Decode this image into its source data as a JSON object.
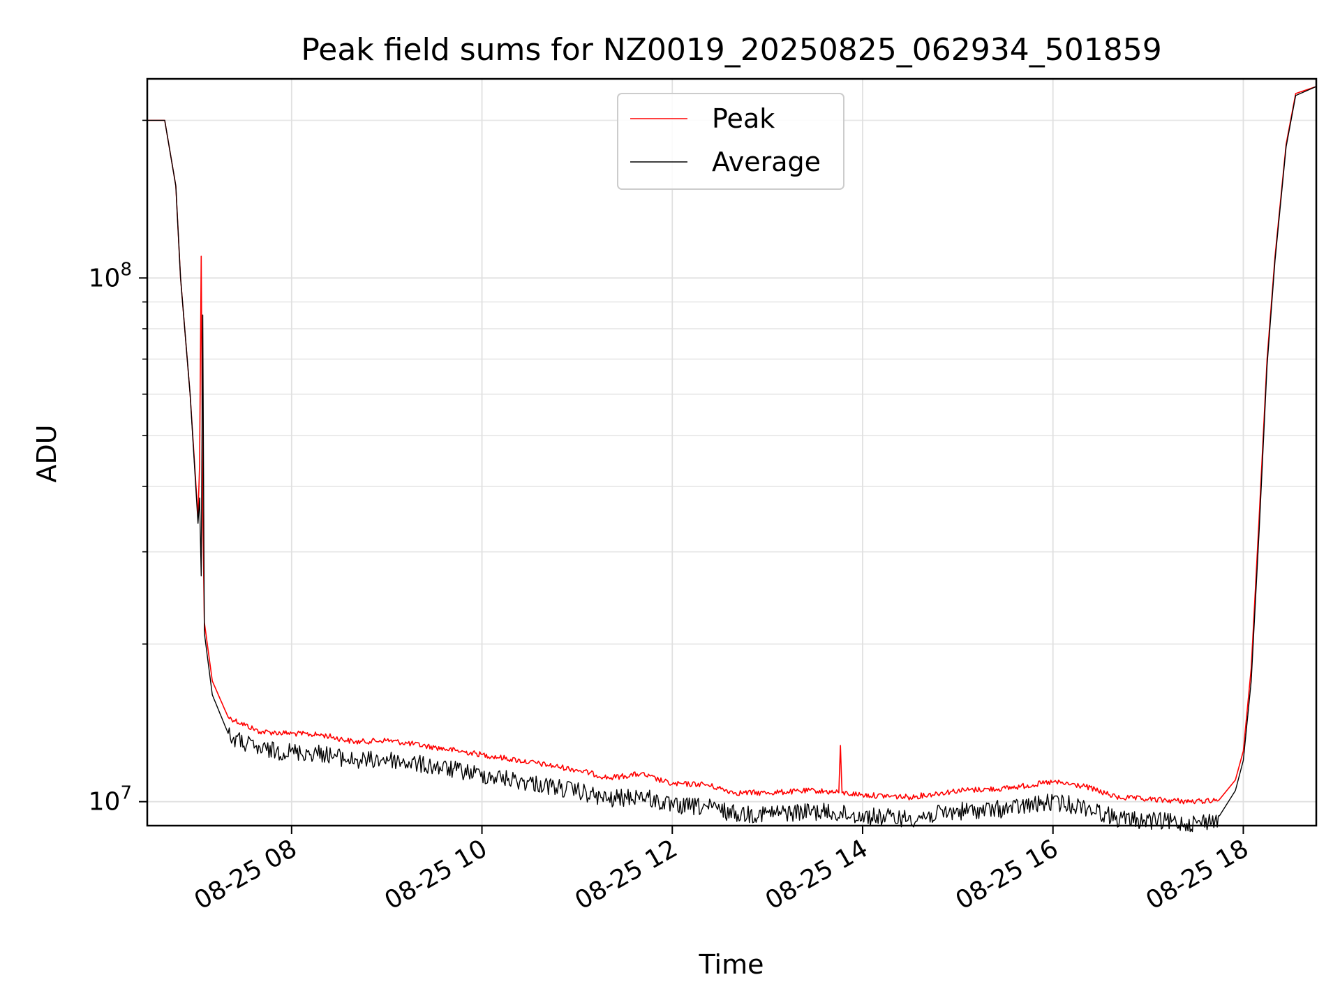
{
  "chart_data": {
    "type": "line",
    "title": "Peak field sums for NZ0019_20250825_062934_501859",
    "xlabel": "Time",
    "ylabel": "ADU",
    "y_scale": "log",
    "ylim": [
      9000000,
      240000000
    ],
    "xlim": [
      "2025-08-25 06:29",
      "2025-08-25 18:46"
    ],
    "grid": true,
    "legend_position": "top-center",
    "y_ticks": [
      {
        "value": 10000000,
        "label_base": "10",
        "label_exp": "7"
      },
      {
        "value": 100000000,
        "label_base": "10",
        "label_exp": "8"
      }
    ],
    "x_ticks": [
      {
        "value": "2025-08-25 08:00",
        "label": "08-25 08"
      },
      {
        "value": "2025-08-25 10:00",
        "label": "08-25 10"
      },
      {
        "value": "2025-08-25 12:00",
        "label": "08-25 12"
      },
      {
        "value": "2025-08-25 14:00",
        "label": "08-25 14"
      },
      {
        "value": "2025-08-25 16:00",
        "label": "08-25 16"
      },
      {
        "value": "2025-08-25 18:00",
        "label": "08-25 18"
      }
    ],
    "series": [
      {
        "name": "Peak",
        "color": "#ff0000",
        "points": [
          [
            "2025-08-25 06:29",
            200000000
          ],
          [
            "2025-08-25 06:40",
            200000000
          ],
          [
            "2025-08-25 06:47",
            150000000
          ],
          [
            "2025-08-25 06:50",
            100000000
          ],
          [
            "2025-08-25 06:56",
            60000000
          ],
          [
            "2025-08-25 07:01",
            35000000
          ],
          [
            "2025-08-25 07:02",
            44000000
          ],
          [
            "2025-08-25 07:03",
            110000000
          ],
          [
            "2025-08-25 07:04",
            36000000
          ],
          [
            "2025-08-25 07:05",
            22000000
          ],
          [
            "2025-08-25 07:10",
            17000000
          ],
          [
            "2025-08-25 07:20",
            14500000
          ],
          [
            "2025-08-25 07:40",
            13600000
          ],
          [
            "2025-08-25 08:00",
            13500000
          ],
          [
            "2025-08-25 08:20",
            13400000
          ],
          [
            "2025-08-25 08:40",
            13000000
          ],
          [
            "2025-08-25 09:00",
            13100000
          ],
          [
            "2025-08-25 09:30",
            12700000
          ],
          [
            "2025-08-25 10:00",
            12300000
          ],
          [
            "2025-08-25 10:30",
            11900000
          ],
          [
            "2025-08-25 11:00",
            11500000
          ],
          [
            "2025-08-25 11:20",
            11100000
          ],
          [
            "2025-08-25 11:40",
            11300000
          ],
          [
            "2025-08-25 12:00",
            10800000
          ],
          [
            "2025-08-25 12:20",
            10800000
          ],
          [
            "2025-08-25 12:40",
            10400000
          ],
          [
            "2025-08-25 13:00",
            10400000
          ],
          [
            "2025-08-25 13:30",
            10500000
          ],
          [
            "2025-08-25 13:45",
            10400000
          ],
          [
            "2025-08-25 13:46",
            12800000
          ],
          [
            "2025-08-25 13:47",
            10400000
          ],
          [
            "2025-08-25 14:00",
            10300000
          ],
          [
            "2025-08-25 14:30",
            10200000
          ],
          [
            "2025-08-25 15:00",
            10500000
          ],
          [
            "2025-08-25 15:30",
            10600000
          ],
          [
            "2025-08-25 16:00",
            10900000
          ],
          [
            "2025-08-25 16:20",
            10700000
          ],
          [
            "2025-08-25 16:40",
            10200000
          ],
          [
            "2025-08-25 17:00",
            10100000
          ],
          [
            "2025-08-25 17:30",
            10000000
          ],
          [
            "2025-08-25 17:45",
            10100000
          ],
          [
            "2025-08-25 17:55",
            11000000
          ],
          [
            "2025-08-25 18:00",
            12500000
          ],
          [
            "2025-08-25 18:05",
            18000000
          ],
          [
            "2025-08-25 18:10",
            35000000
          ],
          [
            "2025-08-25 18:15",
            70000000
          ],
          [
            "2025-08-25 18:20",
            110000000
          ],
          [
            "2025-08-25 18:27",
            180000000
          ],
          [
            "2025-08-25 18:33",
            225000000
          ],
          [
            "2025-08-25 18:46",
            232000000
          ]
        ]
      },
      {
        "name": "Average",
        "color": "#000000",
        "points": [
          [
            "2025-08-25 06:29",
            200000000
          ],
          [
            "2025-08-25 06:40",
            200000000
          ],
          [
            "2025-08-25 06:47",
            150000000
          ],
          [
            "2025-08-25 06:50",
            100000000
          ],
          [
            "2025-08-25 06:56",
            60000000
          ],
          [
            "2025-08-25 07:01",
            34000000
          ],
          [
            "2025-08-25 07:02",
            38000000
          ],
          [
            "2025-08-25 07:03",
            27000000
          ],
          [
            "2025-08-25 07:04",
            85000000
          ],
          [
            "2025-08-25 07:05",
            21000000
          ],
          [
            "2025-08-25 07:10",
            16000000
          ],
          [
            "2025-08-25 07:20",
            13500000
          ],
          [
            "2025-08-25 07:40",
            12700000
          ],
          [
            "2025-08-25 08:00",
            12600000
          ],
          [
            "2025-08-25 08:20",
            12500000
          ],
          [
            "2025-08-25 08:40",
            12100000
          ],
          [
            "2025-08-25 09:00",
            12200000
          ],
          [
            "2025-08-25 09:30",
            11800000
          ],
          [
            "2025-08-25 10:00",
            11400000
          ],
          [
            "2025-08-25 10:30",
            11000000
          ],
          [
            "2025-08-25 11:00",
            10600000
          ],
          [
            "2025-08-25 11:20",
            10200000
          ],
          [
            "2025-08-25 11:40",
            10400000
          ],
          [
            "2025-08-25 12:00",
            9900000
          ],
          [
            "2025-08-25 12:20",
            9900000
          ],
          [
            "2025-08-25 12:40",
            9600000
          ],
          [
            "2025-08-25 13:00",
            9600000
          ],
          [
            "2025-08-25 13:30",
            9700000
          ],
          [
            "2025-08-25 14:00",
            9500000
          ],
          [
            "2025-08-25 14:30",
            9400000
          ],
          [
            "2025-08-25 15:00",
            9700000
          ],
          [
            "2025-08-25 15:30",
            9800000
          ],
          [
            "2025-08-25 16:00",
            10100000
          ],
          [
            "2025-08-25 16:20",
            9900000
          ],
          [
            "2025-08-25 16:40",
            9400000
          ],
          [
            "2025-08-25 17:00",
            9300000
          ],
          [
            "2025-08-25 17:30",
            9200000
          ],
          [
            "2025-08-25 17:45",
            9400000
          ],
          [
            "2025-08-25 17:55",
            10500000
          ],
          [
            "2025-08-25 18:00",
            12000000
          ],
          [
            "2025-08-25 18:05",
            17000000
          ],
          [
            "2025-08-25 18:10",
            33000000
          ],
          [
            "2025-08-25 18:15",
            68000000
          ],
          [
            "2025-08-25 18:20",
            108000000
          ],
          [
            "2025-08-25 18:27",
            178000000
          ],
          [
            "2025-08-25 18:33",
            223000000
          ],
          [
            "2025-08-25 18:46",
            232000000
          ]
        ]
      }
    ]
  }
}
